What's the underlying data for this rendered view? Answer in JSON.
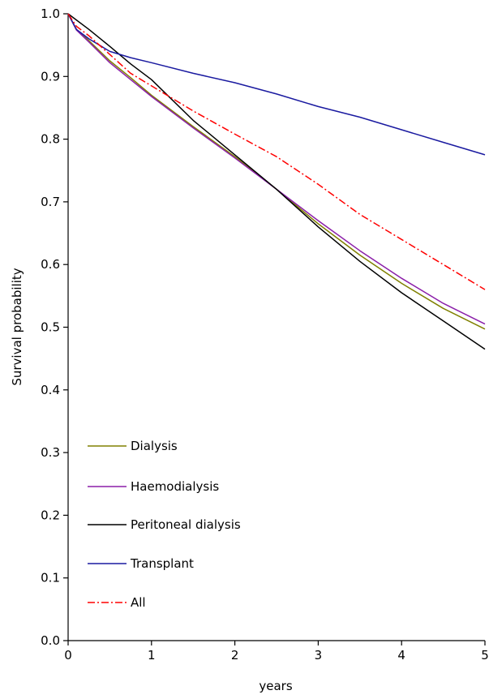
{
  "chart_data": {
    "type": "line",
    "title": "",
    "xlabel": "years",
    "ylabel": "Survival probability",
    "xlim": [
      0,
      5
    ],
    "ylim": [
      0,
      1
    ],
    "x_ticks": [
      "0",
      "1",
      "2",
      "3",
      "4",
      "5"
    ],
    "y_ticks": [
      "0.0",
      "0.1",
      "0.2",
      "0.3",
      "0.4",
      "0.5",
      "0.6",
      "0.7",
      "0.8",
      "0.9",
      "1.0"
    ],
    "grid": false,
    "legend_position": "lower-left",
    "series": [
      {
        "name": "Dialysis",
        "color": "#808000",
        "dash": "solid",
        "points": [
          [
            0,
            1.0
          ],
          [
            0.1,
            0.975
          ],
          [
            0.25,
            0.957
          ],
          [
            0.5,
            0.925
          ],
          [
            0.75,
            0.898
          ],
          [
            1,
            0.87
          ],
          [
            1.5,
            0.82
          ],
          [
            2,
            0.772
          ],
          [
            2.5,
            0.72
          ],
          [
            3,
            0.665
          ],
          [
            3.5,
            0.615
          ],
          [
            4,
            0.57
          ],
          [
            4.5,
            0.53
          ],
          [
            5,
            0.497
          ]
        ]
      },
      {
        "name": "Haemodialysis",
        "color": "#8b1fa9",
        "dash": "solid",
        "points": [
          [
            0,
            1.0
          ],
          [
            0.1,
            0.974
          ],
          [
            0.25,
            0.955
          ],
          [
            0.5,
            0.922
          ],
          [
            0.75,
            0.895
          ],
          [
            1,
            0.868
          ],
          [
            1.5,
            0.818
          ],
          [
            2,
            0.77
          ],
          [
            2.5,
            0.72
          ],
          [
            3,
            0.67
          ],
          [
            3.5,
            0.622
          ],
          [
            4,
            0.578
          ],
          [
            4.5,
            0.538
          ],
          [
            5,
            0.505
          ]
        ]
      },
      {
        "name": "Peritoneal dialysis",
        "color": "#000000",
        "dash": "solid",
        "points": [
          [
            0,
            1.0
          ],
          [
            0.25,
            0.975
          ],
          [
            0.5,
            0.948
          ],
          [
            0.75,
            0.92
          ],
          [
            1,
            0.895
          ],
          [
            1.5,
            0.83
          ],
          [
            2,
            0.775
          ],
          [
            2.5,
            0.72
          ],
          [
            3,
            0.66
          ],
          [
            3.5,
            0.605
          ],
          [
            4,
            0.555
          ],
          [
            4.5,
            0.51
          ],
          [
            5,
            0.465
          ]
        ]
      },
      {
        "name": "Transplant",
        "color": "#1a1aa0",
        "dash": "solid",
        "points": [
          [
            0,
            1.0
          ],
          [
            0.1,
            0.975
          ],
          [
            0.25,
            0.96
          ],
          [
            0.5,
            0.94
          ],
          [
            0.75,
            0.93
          ],
          [
            1,
            0.922
          ],
          [
            1.5,
            0.905
          ],
          [
            2,
            0.89
          ],
          [
            2.5,
            0.872
          ],
          [
            3,
            0.852
          ],
          [
            3.5,
            0.835
          ],
          [
            4,
            0.815
          ],
          [
            4.5,
            0.795
          ],
          [
            5,
            0.775
          ]
        ]
      },
      {
        "name": "All",
        "color": "#ff0000",
        "dash": "dashdot",
        "points": [
          [
            0,
            1.0
          ],
          [
            0.1,
            0.98
          ],
          [
            0.25,
            0.965
          ],
          [
            0.5,
            0.935
          ],
          [
            0.75,
            0.905
          ],
          [
            1,
            0.885
          ],
          [
            1.5,
            0.845
          ],
          [
            2,
            0.808
          ],
          [
            2.5,
            0.772
          ],
          [
            3,
            0.728
          ],
          [
            3.5,
            0.68
          ],
          [
            4,
            0.64
          ],
          [
            4.5,
            0.6
          ],
          [
            5,
            0.56
          ]
        ]
      }
    ]
  }
}
